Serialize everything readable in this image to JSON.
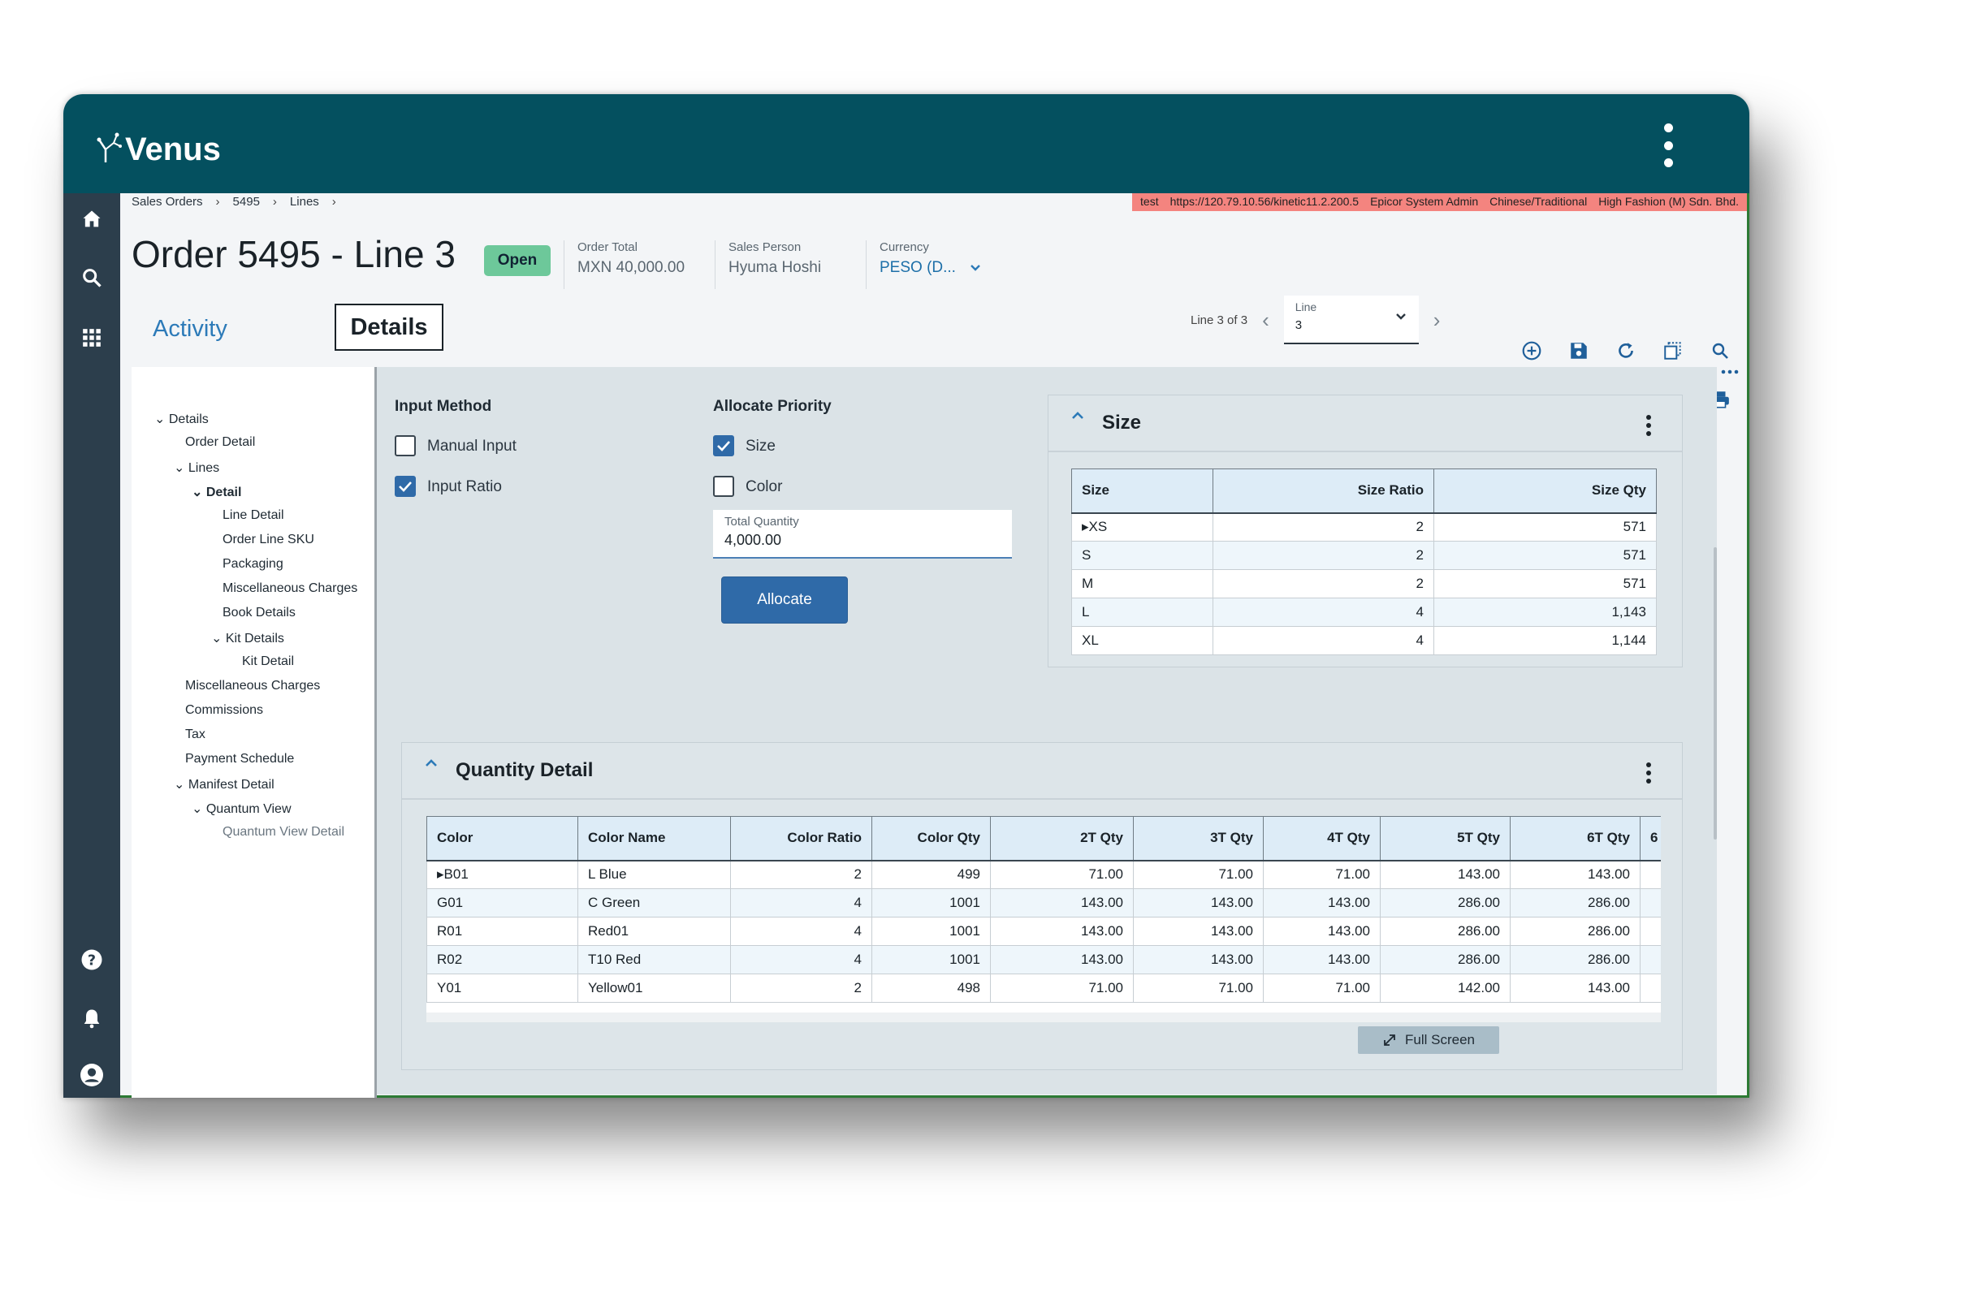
{
  "app": {
    "logo_text": "Venus"
  },
  "breadcrumb": [
    "Sales Orders",
    "5495",
    "Lines"
  ],
  "env_bar": [
    "test",
    "https://120.79.10.56/kinetic11.2.200.5",
    "Epicor System Admin",
    "Chinese/Traditional",
    "High Fashion (M) Sdn. Bhd."
  ],
  "header": {
    "title": "Order 5495 - Line 3",
    "status": "Open",
    "order_total_label": "Order Total",
    "order_total": "MXN 40,000.00",
    "sales_person_label": "Sales Person",
    "sales_person": "Hyuma Hoshi",
    "currency_label": "Currency",
    "currency": "PESO (D..."
  },
  "tabs": {
    "activity": "Activity",
    "details": "Details"
  },
  "line_nav": {
    "count_text": "Line 3 of 3",
    "field_label": "Line",
    "field_value": "3"
  },
  "toolbar_icons": [
    "add-icon",
    "save-icon",
    "refresh-icon",
    "copy-icon",
    "search-icon",
    "document-icon",
    "book-icon",
    "phone-icon",
    "attachment-icon",
    "print-icon",
    "more-icon"
  ],
  "tree": [
    {
      "label": "Details",
      "level": 0,
      "expanded": true
    },
    {
      "label": "Order Detail",
      "level": 1
    },
    {
      "label": "Lines",
      "level": 1,
      "expanded": true
    },
    {
      "label": "Detail",
      "level": 2,
      "expanded": true,
      "bold": true
    },
    {
      "label": "Line Detail",
      "level": 3
    },
    {
      "label": "Order Line SKU",
      "level": 3
    },
    {
      "label": "Packaging",
      "level": 3
    },
    {
      "label": "Miscellaneous Charges",
      "level": 3
    },
    {
      "label": "Book Details",
      "level": 3
    },
    {
      "label": "Kit Details",
      "level": 3,
      "expanded": true
    },
    {
      "label": "Kit Detail",
      "level": 4
    },
    {
      "label": "Miscellaneous Charges",
      "level": 1
    },
    {
      "label": "Commissions",
      "level": 1
    },
    {
      "label": "Tax",
      "level": 1
    },
    {
      "label": "Payment Schedule",
      "level": 1
    },
    {
      "label": "Manifest Detail",
      "level": 1,
      "expanded": true
    },
    {
      "label": "Quantum View",
      "level": 2,
      "expanded": true
    },
    {
      "label": "Quantum View Detail",
      "level": 3,
      "muted": true
    }
  ],
  "input_method": {
    "label": "Input Method",
    "options": [
      {
        "label": "Manual Input",
        "checked": false
      },
      {
        "label": "Input Ratio",
        "checked": true
      }
    ]
  },
  "allocate_priority": {
    "label": "Allocate Priority",
    "options": [
      {
        "label": "Size",
        "checked": true
      },
      {
        "label": "Color",
        "checked": false
      }
    ],
    "total_quantity_label": "Total Quantity",
    "total_quantity": "4,000.00",
    "allocate_button": "Allocate"
  },
  "size_panel": {
    "title": "Size",
    "columns": [
      "Size",
      "Size Ratio",
      "Size Qty"
    ],
    "rows": [
      [
        "XS",
        "2",
        "571"
      ],
      [
        "S",
        "2",
        "571"
      ],
      [
        "M",
        "2",
        "571"
      ],
      [
        "L",
        "4",
        "1,143"
      ],
      [
        "XL",
        "4",
        "1,144"
      ]
    ]
  },
  "quantity_panel": {
    "title": "Quantity Detail",
    "columns": [
      "Color",
      "Color Name",
      "Color Ratio",
      "Color Qty",
      "2T Qty",
      "3T Qty",
      "4T Qty",
      "5T Qty",
      "6T Qty",
      "6"
    ],
    "rows": [
      [
        "B01",
        "L Blue",
        "2",
        "499",
        "71.00",
        "71.00",
        "71.00",
        "143.00",
        "143.00",
        ""
      ],
      [
        "G01",
        "C Green",
        "4",
        "1001",
        "143.00",
        "143.00",
        "143.00",
        "286.00",
        "286.00",
        ""
      ],
      [
        "R01",
        "Red01",
        "4",
        "1001",
        "143.00",
        "143.00",
        "143.00",
        "286.00",
        "286.00",
        ""
      ],
      [
        "R02",
        "T10 Red",
        "4",
        "1001",
        "143.00",
        "143.00",
        "143.00",
        "286.00",
        "286.00",
        ""
      ],
      [
        "Y01",
        "Yellow01",
        "2",
        "498",
        "71.00",
        "71.00",
        "71.00",
        "142.00",
        "143.00",
        ""
      ]
    ],
    "fullscreen_label": "Full Screen"
  },
  "colors": {
    "topbar": "#04505f",
    "sidenav": "#2c3e4c",
    "accent": "#2f6aa8",
    "status_open": "#6dc89a",
    "env_bar": "#f4847f"
  }
}
